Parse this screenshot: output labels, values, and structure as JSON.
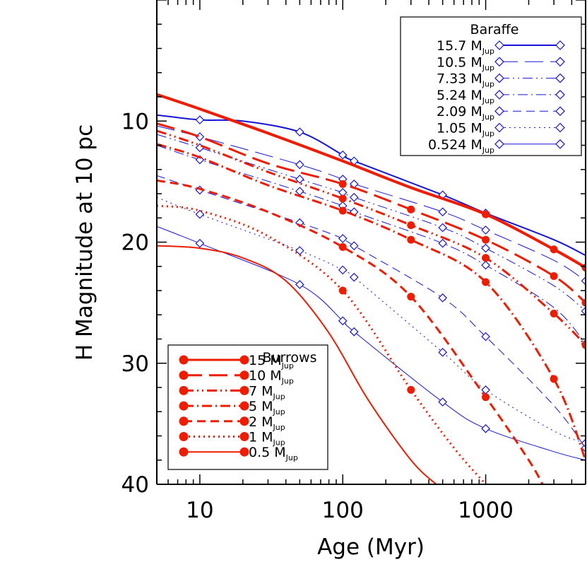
{
  "chart_data": {
    "type": "line",
    "title": "",
    "xlabel": "Age (Myr)",
    "ylabel": "H Magnitude at 10 pc",
    "x_scale": "log",
    "xlim": [
      5,
      5000
    ],
    "ylim": [
      40,
      0
    ],
    "x_ticks": [
      10,
      100,
      1000
    ],
    "y_ticks": [
      10,
      20,
      30,
      40
    ],
    "grid": false,
    "legends": {
      "baraffe": {
        "title": "Baraffe",
        "placement": "top-right",
        "entries": [
          {
            "mass": "15.7",
            "unit": "M",
            "sub": "Jup"
          },
          {
            "mass": "10.5",
            "unit": "M",
            "sub": "Jup"
          },
          {
            "mass": "7.33",
            "unit": "M",
            "sub": "Jup"
          },
          {
            "mass": "5.24",
            "unit": "M",
            "sub": "Jup"
          },
          {
            "mass": "2.09",
            "unit": "M",
            "sub": "Jup"
          },
          {
            "mass": "1.05",
            "unit": "M",
            "sub": "Jup"
          },
          {
            "mass": "0.524",
            "unit": "M",
            "sub": "Jup"
          }
        ]
      },
      "burrows": {
        "title": "Burrows",
        "placement": "bottom-left",
        "entries": [
          {
            "mass": "15",
            "unit": "M",
            "sub": "Jup"
          },
          {
            "mass": "10",
            "unit": "M",
            "sub": "Jup"
          },
          {
            "mass": "7",
            "unit": "M",
            "sub": "Jup"
          },
          {
            "mass": "5",
            "unit": "M",
            "sub": "Jup"
          },
          {
            "mass": "2",
            "unit": "M",
            "sub": "Jup"
          },
          {
            "mass": "1",
            "unit": "M",
            "sub": "Jup"
          },
          {
            "mass": "0.5",
            "unit": "M",
            "sub": "Jup"
          }
        ]
      }
    },
    "colors": {
      "baraffe": "#1515d6",
      "burrows": "#ee1c00",
      "axes": "#000000"
    },
    "series": [
      {
        "group": "baraffe",
        "mass": 15.7,
        "dash": "solid",
        "width": 2,
        "x": [
          5,
          10,
          20,
          50,
          100,
          120,
          500,
          1000,
          3000,
          5000
        ],
        "y": [
          9.5,
          9.9,
          10.0,
          10.9,
          12.8,
          13.3,
          16.1,
          17.6,
          19.8,
          21.1
        ],
        "markers": [
          10,
          50,
          100,
          120,
          500,
          1000
        ]
      },
      {
        "group": "baraffe",
        "mass": 10.5,
        "dash": "longdash",
        "width": 1,
        "x": [
          5,
          10,
          50,
          100,
          120,
          500,
          1000,
          3000,
          5000
        ],
        "y": [
          10.4,
          11.3,
          13.6,
          14.8,
          15.2,
          17.5,
          19.0,
          21.5,
          23.2
        ],
        "markers": [
          10,
          50,
          100,
          120,
          500,
          1000,
          5000
        ]
      },
      {
        "group": "baraffe",
        "mass": 7.33,
        "dash": "dashdotdot",
        "width": 1,
        "x": [
          5,
          10,
          50,
          100,
          120,
          500,
          1000,
          3000,
          5000
        ],
        "y": [
          11.1,
          12.2,
          14.8,
          15.9,
          16.3,
          18.8,
          20.5,
          23.6,
          25.7
        ],
        "markers": [
          10,
          50,
          100,
          120,
          500,
          1000,
          5000
        ]
      },
      {
        "group": "baraffe",
        "mass": 5.24,
        "dash": "dashdot",
        "width": 1,
        "x": [
          5,
          10,
          50,
          100,
          120,
          500,
          1000,
          3000,
          5000
        ],
        "y": [
          12.0,
          13.2,
          15.8,
          17.0,
          17.5,
          20.1,
          21.9,
          25.4,
          28.4
        ],
        "markers": [
          10,
          50,
          100,
          120,
          500,
          1000,
          5000
        ]
      },
      {
        "group": "baraffe",
        "mass": 2.09,
        "dash": "dash",
        "width": 1,
        "x": [
          5,
          10,
          50,
          100,
          120,
          500,
          1000,
          3000,
          5000
        ],
        "y": [
          14.5,
          15.7,
          18.4,
          19.7,
          20.3,
          24.6,
          27.8,
          33.5,
          37.0
        ],
        "markers": [
          10,
          50,
          100,
          120,
          500,
          1000,
          5000
        ]
      },
      {
        "group": "baraffe",
        "mass": 1.05,
        "dash": "dot",
        "width": 1,
        "x": [
          5,
          10,
          50,
          100,
          120,
          500,
          1000,
          3000,
          5000
        ],
        "y": [
          16.3,
          17.7,
          20.7,
          22.3,
          22.9,
          29.1,
          32.2,
          35.6,
          36.6
        ],
        "markers": [
          10,
          50,
          100,
          120,
          500,
          1000,
          5000
        ]
      },
      {
        "group": "baraffe",
        "mass": 0.524,
        "dash": "solid",
        "width": 1,
        "x": [
          5,
          10,
          50,
          100,
          120,
          500,
          1000,
          3000,
          5000
        ],
        "y": [
          18.7,
          20.1,
          23.5,
          26.5,
          27.4,
          33.2,
          35.4,
          37.3,
          38.0
        ],
        "markers": [
          10,
          50,
          100,
          120,
          500,
          1000
        ]
      },
      {
        "group": "burrows",
        "mass": 15,
        "dash": "solid",
        "width": 4,
        "x": [
          5,
          10,
          30,
          100,
          300,
          1000,
          3000,
          5000
        ],
        "y": [
          7.8,
          9.0,
          11.0,
          13.3,
          15.5,
          17.7,
          20.6,
          22.1
        ],
        "markers": [
          1000,
          3000,
          5000
        ]
      },
      {
        "group": "burrows",
        "mass": 10,
        "dash": "longdash",
        "width": 3,
        "x": [
          5,
          10,
          30,
          100,
          300,
          1000,
          3000,
          5000
        ],
        "y": [
          10.2,
          11.3,
          13.5,
          15.2,
          17.3,
          19.8,
          22.8,
          25.0
        ],
        "markers": [
          100,
          300,
          1000,
          3000,
          5000
        ]
      },
      {
        "group": "burrows",
        "mass": 7,
        "dash": "dashdotdot",
        "width": 3,
        "x": [
          5,
          10,
          30,
          100,
          300,
          1000,
          3000,
          5000
        ],
        "y": [
          10.8,
          12.0,
          14.2,
          16.4,
          18.6,
          21.3,
          25.9,
          28.5
        ],
        "markers": [
          100,
          300,
          1000,
          3000,
          5000
        ]
      },
      {
        "group": "burrows",
        "mass": 5,
        "dash": "dashdot",
        "width": 3,
        "x": [
          5,
          10,
          30,
          100,
          300,
          1000,
          3000,
          5000
        ],
        "y": [
          11.9,
          13.0,
          15.3,
          17.4,
          19.8,
          23.3,
          31.3,
          38.0
        ],
        "markers": [
          100,
          300,
          1000,
          3000
        ]
      },
      {
        "group": "burrows",
        "mass": 2,
        "dash": "dash",
        "width": 3,
        "x": [
          5,
          10,
          30,
          100,
          300,
          1000,
          2000,
          2500
        ],
        "y": [
          14.9,
          15.6,
          17.5,
          20.4,
          24.5,
          32.8,
          38.0,
          40.0
        ],
        "markers": [
          100,
          300,
          1000
        ]
      },
      {
        "group": "burrows",
        "mass": 1,
        "dash": "dot",
        "width": 3,
        "x": [
          5,
          10,
          30,
          100,
          300,
          600,
          1000
        ],
        "y": [
          17.0,
          17.4,
          19.5,
          24.0,
          32.2,
          37.0,
          40.0
        ],
        "markers": [
          100,
          300
        ]
      },
      {
        "group": "burrows",
        "mass": 0.5,
        "dash": "solid",
        "width": 2,
        "x": [
          5,
          10,
          20,
          40,
          80,
          150,
          300,
          450
        ],
        "y": [
          20.3,
          20.5,
          21.3,
          23.2,
          27.5,
          33.0,
          38.0,
          40.0
        ],
        "markers": []
      }
    ]
  }
}
